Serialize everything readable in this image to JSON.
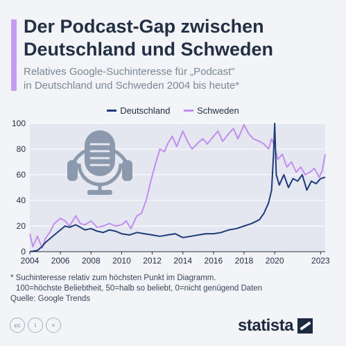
{
  "header": {
    "title_line1": "Der Podcast-Gap zwischen",
    "title_line2": "Deutschland und Schweden",
    "subtitle_line1": "Relatives Google-Suchinteresse für „Podcast\"",
    "subtitle_line2": "in Deutschland und Schweden 2004 bis heute*"
  },
  "legend": {
    "de_label": "Deutschland",
    "se_label": "Schweden"
  },
  "colors": {
    "deutschland": "#1e3a78",
    "schweden": "#c38df0",
    "plot_bg": "#e4e6f0",
    "accent": "#c79cf0",
    "icon": "#8c99ad"
  },
  "chart_data": {
    "type": "line",
    "title": "Der Podcast-Gap zwischen Deutschland und Schweden",
    "subtitle": "Relatives Google-Suchinteresse für „Podcast\" in Deutschland und Schweden 2004 bis heute*",
    "xlim": [
      2004,
      2023.3
    ],
    "ylim": [
      0,
      100
    ],
    "x_ticks": [
      "2004",
      "2006",
      "2008",
      "2010",
      "2012",
      "2014",
      "2016",
      "2018",
      "2020",
      "2023"
    ],
    "y_ticks": [
      "0",
      "20",
      "40",
      "60",
      "80",
      "100"
    ],
    "x_tick_values": [
      2004,
      2006,
      2008,
      2010,
      2012,
      2014,
      2016,
      2018,
      2020,
      2023
    ],
    "y_tick_values": [
      0,
      20,
      40,
      60,
      80,
      100
    ],
    "grid": true,
    "legend_position": "top",
    "series": [
      {
        "name": "Deutschland",
        "x": [
          2004.0,
          2004.5,
          2004.8,
          2005.0,
          2005.3,
          2005.6,
          2006.0,
          2006.3,
          2006.6,
          2007.0,
          2007.3,
          2007.6,
          2008.0,
          2008.4,
          2008.8,
          2009.2,
          2009.6,
          2010.0,
          2010.5,
          2011.0,
          2011.5,
          2012.0,
          2012.5,
          2013.0,
          2013.5,
          2014.0,
          2014.5,
          2015.0,
          2015.5,
          2016.0,
          2016.5,
          2017.0,
          2017.5,
          2018.0,
          2018.5,
          2019.0,
          2019.3,
          2019.6,
          2019.8,
          2019.92,
          2020.0,
          2020.1,
          2020.3,
          2020.6,
          2020.9,
          2021.2,
          2021.5,
          2021.8,
          2022.1,
          2022.4,
          2022.7,
          2023.0,
          2023.3
        ],
        "values": [
          0,
          1,
          4,
          7,
          10,
          13,
          17,
          20,
          19,
          21,
          19,
          17,
          18,
          16,
          15,
          17,
          16,
          14,
          13,
          15,
          14,
          13,
          12,
          13,
          14,
          11,
          12,
          13,
          14,
          14,
          15,
          17,
          18,
          20,
          22,
          25,
          30,
          38,
          48,
          75,
          100,
          60,
          52,
          60,
          50,
          57,
          55,
          60,
          48,
          55,
          53,
          57,
          58
        ]
      },
      {
        "name": "Schweden",
        "x": [
          2004.0,
          2004.2,
          2004.5,
          2004.8,
          2005.0,
          2005.3,
          2005.6,
          2006.0,
          2006.3,
          2006.6,
          2007.0,
          2007.3,
          2007.6,
          2008.0,
          2008.4,
          2008.8,
          2009.2,
          2009.6,
          2010.0,
          2010.3,
          2010.6,
          2011.0,
          2011.3,
          2011.6,
          2011.9,
          2012.2,
          2012.5,
          2012.8,
          2013.0,
          2013.3,
          2013.6,
          2014.0,
          2014.3,
          2014.6,
          2015.0,
          2015.3,
          2015.6,
          2016.0,
          2016.3,
          2016.6,
          2017.0,
          2017.3,
          2017.6,
          2018.0,
          2018.3,
          2018.6,
          2019.0,
          2019.3,
          2019.6,
          2019.8,
          2020.0,
          2020.2,
          2020.5,
          2020.8,
          2021.1,
          2021.4,
          2021.7,
          2022.0,
          2022.3,
          2022.6,
          2022.9,
          2023.1,
          2023.3
        ],
        "values": [
          14,
          4,
          12,
          3,
          10,
          15,
          22,
          26,
          24,
          20,
          28,
          22,
          21,
          24,
          19,
          20,
          22,
          20,
          21,
          24,
          18,
          28,
          30,
          40,
          55,
          68,
          80,
          78,
          84,
          90,
          82,
          94,
          86,
          80,
          85,
          88,
          84,
          90,
          94,
          86,
          92,
          96,
          88,
          99,
          92,
          88,
          86,
          84,
          80,
          88,
          82,
          72,
          76,
          66,
          70,
          62,
          66,
          60,
          62,
          65,
          58,
          63,
          76
        ]
      }
    ]
  },
  "footnote": {
    "line1": "* Suchinteresse relativ zum höchsten Punkt im Diagramm.",
    "line2": "100=höchste Beliebtheit, 50=halb so beliebt, 0=nicht genügend Daten",
    "source": "Quelle: Google Trends"
  },
  "brand": {
    "name": "statista",
    "license_icons": [
      "cc-icon",
      "by-icon",
      "nd-icon"
    ]
  }
}
